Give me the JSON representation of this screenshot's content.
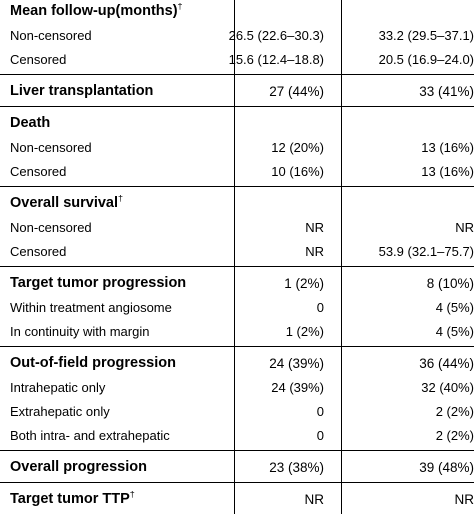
{
  "sections": [
    {
      "rows": [
        {
          "label": "Mean follow-up(months)",
          "sup": "†",
          "c1": "",
          "c2": "",
          "type": "hdr"
        },
        {
          "label": "Non-censored",
          "sup": "",
          "c1": "26.5 (22.6–30.3)",
          "c2": "33.2 (29.5–37.1)",
          "type": "sub"
        },
        {
          "label": "Censored",
          "sup": "",
          "c1": "15.6 (12.4–18.8)",
          "c2": "20.5 (16.9–24.0)",
          "type": "sub"
        }
      ]
    },
    {
      "rows": [
        {
          "label": "Liver transplantation",
          "sup": "",
          "c1": "27 (44%)",
          "c2": "33 (41%)",
          "type": "hdr"
        }
      ]
    },
    {
      "rows": [
        {
          "label": "Death",
          "sup": "",
          "c1": "",
          "c2": "",
          "type": "hdr"
        },
        {
          "label": "Non-censored",
          "sup": "",
          "c1": "12 (20%)",
          "c2": "13 (16%)",
          "type": "sub"
        },
        {
          "label": "Censored",
          "sup": "",
          "c1": "10 (16%)",
          "c2": "13 (16%)",
          "type": "sub"
        }
      ]
    },
    {
      "rows": [
        {
          "label": "Overall survival",
          "sup": "†",
          "c1": "",
          "c2": "",
          "type": "hdr"
        },
        {
          "label": "Non-censored",
          "sup": "",
          "c1": "NR",
          "c2": "NR",
          "type": "sub"
        },
        {
          "label": "Censored",
          "sup": "",
          "c1": "NR",
          "c2": "53.9 (32.1–75.7)",
          "type": "sub"
        }
      ]
    },
    {
      "rows": [
        {
          "label": "Target tumor progression",
          "sup": "",
          "c1": "1 (2%)",
          "c2": "8 (10%)",
          "type": "hdr"
        },
        {
          "label": "Within treatment angiosome",
          "sup": "",
          "c1": "0",
          "c2": "4 (5%)",
          "type": "sub"
        },
        {
          "label": "In continuity with margin",
          "sup": "",
          "c1": "1 (2%)",
          "c2": "4 (5%)",
          "type": "sub"
        }
      ]
    },
    {
      "rows": [
        {
          "label": "Out-of-field progression",
          "sup": "",
          "c1": "24 (39%)",
          "c2": "36 (44%)",
          "type": "hdr"
        },
        {
          "label": "Intrahepatic only",
          "sup": "",
          "c1": "24 (39%)",
          "c2": "32 (40%)",
          "type": "sub"
        },
        {
          "label": "Extrahepatic only",
          "sup": "",
          "c1": "0",
          "c2": "2 (2%)",
          "type": "sub"
        },
        {
          "label": "Both intra- and extrahepatic",
          "sup": "",
          "c1": "0",
          "c2": "2 (2%)",
          "type": "sub"
        }
      ]
    },
    {
      "rows": [
        {
          "label": "Overall progression",
          "sup": "",
          "c1": "23 (38%)",
          "c2": "39 (48%)",
          "type": "hdr"
        }
      ]
    },
    {
      "rows": [
        {
          "label": "Target tumor TTP",
          "sup": "†",
          "c1": "NR",
          "c2": "NR",
          "type": "hdr"
        }
      ]
    }
  ]
}
